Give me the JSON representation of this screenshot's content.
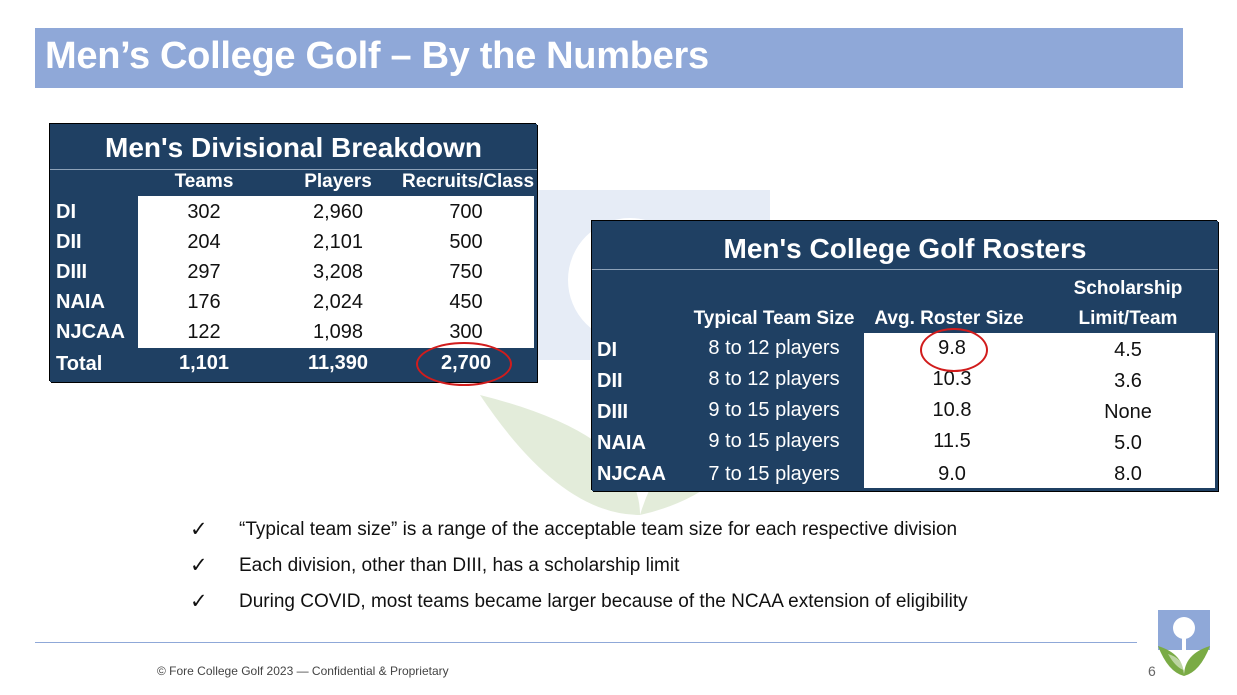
{
  "slide": {
    "title": "Men’s College Golf – By the Numbers",
    "footer": "© Fore College Golf 2023 — Confidential & Proprietary",
    "page_number": "6"
  },
  "table1": {
    "title": "Men's Divisional Breakdown",
    "headers": [
      "Teams",
      "Players",
      "Recruits/Class"
    ],
    "rows": [
      {
        "label": "DI",
        "teams": "302",
        "players": "2,960",
        "recruits": "700"
      },
      {
        "label": "DII",
        "teams": "204",
        "players": "2,101",
        "recruits": "500"
      },
      {
        "label": "DIII",
        "teams": "297",
        "players": "3,208",
        "recruits": "750"
      },
      {
        "label": "NAIA",
        "teams": "176",
        "players": "2,024",
        "recruits": "450"
      },
      {
        "label": "NJCAA",
        "teams": "122",
        "players": "1,098",
        "recruits": "300"
      }
    ],
    "total": {
      "label": "Total",
      "teams": "1,101",
      "players": "11,390",
      "recruits": "2,700"
    }
  },
  "table2": {
    "title": "Men's College Golf Rosters",
    "headers": {
      "typical": "Typical Team Size",
      "avg": "Avg. Roster Size",
      "scholarship_line1": "Scholarship",
      "scholarship_line2": "Limit/Team"
    },
    "rows": [
      {
        "label": "DI",
        "typical": "8 to 12 players",
        "avg": "9.8",
        "limit": "4.5"
      },
      {
        "label": "DII",
        "typical": "8 to 12 players",
        "avg": "10.3",
        "limit": "3.6"
      },
      {
        "label": "DIII",
        "typical": "9 to 15 players",
        "avg": "10.8",
        "limit": "None"
      },
      {
        "label": "NAIA",
        "typical": "9 to 15 players",
        "avg": "11.5",
        "limit": "5.0"
      },
      {
        "label": "NJCAA",
        "typical": "7 to 15 players",
        "avg": "9.0",
        "limit": "8.0"
      }
    ]
  },
  "bullets": [
    "“Typical team size” is a range of the acceptable team size for each respective division",
    "Each division, other than DIII, has a scholarship limit",
    "During COVID, most teams became larger because of the NCAA extension of eligibility"
  ],
  "icons": {
    "bullet": "checkmark-icon",
    "logo": "fore-college-golf-logo"
  },
  "colors": {
    "title_bar": "#8fa8d8",
    "table_navy": "#1f4063",
    "highlight": "#d11c1c",
    "logo_green": "#7aab45",
    "logo_blue": "#8fa8d8"
  }
}
